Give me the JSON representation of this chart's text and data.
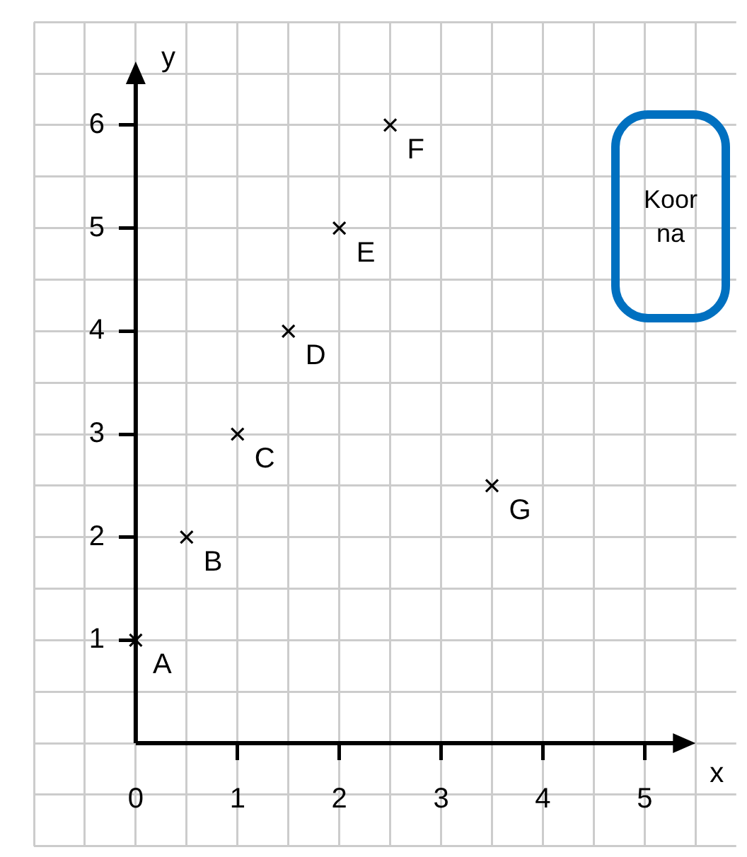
{
  "chart_data": {
    "type": "scatter",
    "xlabel": "x",
    "ylabel": "y",
    "x": [
      0,
      0.5,
      1,
      1.5,
      2,
      2.5,
      3.5
    ],
    "values": [
      1,
      2,
      3,
      4,
      5,
      6,
      2.5
    ],
    "color": "#000000",
    "marker": "cross",
    "grid": true,
    "legend": false,
    "xlim": [
      -1,
      5.9
    ],
    "ylim": [
      -1,
      7
    ],
    "xticks": [
      {
        "value": -1,
        "label": null
      },
      {
        "value": -0.5,
        "label": null
      },
      0,
      {
        "value": 0.5,
        "label": null
      },
      1,
      {
        "value": 1.5,
        "label": null
      },
      2,
      {
        "value": 2.5,
        "label": null
      },
      3,
      {
        "value": 3.5,
        "label": null
      },
      4,
      {
        "value": 4.5,
        "label": null
      },
      5,
      {
        "value": 5.5,
        "label": null
      }
    ],
    "yticks": [
      {
        "value": -1,
        "label": null
      },
      {
        "value": -0.5,
        "label": null
      },
      {
        "value": 0,
        "label": null
      },
      {
        "value": 0.5,
        "label": null
      },
      1,
      {
        "value": 1.5,
        "label": null
      },
      2,
      {
        "value": 2.5,
        "label": null
      },
      3,
      {
        "value": 3.5,
        "label": null
      },
      4,
      {
        "value": 4.5,
        "label": null
      },
      5,
      {
        "value": 5.5,
        "label": null
      },
      6,
      {
        "value": 6.5,
        "label": null
      },
      {
        "value": 7,
        "label": null
      }
    ],
    "annotations": [
      {
        "text": "A",
        "x": 0,
        "y": 1
      },
      {
        "text": "B",
        "x": 0.5,
        "y": 2
      },
      {
        "text": "C",
        "x": 1,
        "y": 3
      },
      {
        "text": "D",
        "x": 1.5,
        "y": 4
      },
      {
        "text": "E",
        "x": 2,
        "y": 5
      },
      {
        "text": "F",
        "x": 2.5,
        "y": 6
      },
      {
        "text": "G",
        "x": 3.5,
        "y": 2.5
      },
      "Koor\nna"
    ]
  }
}
